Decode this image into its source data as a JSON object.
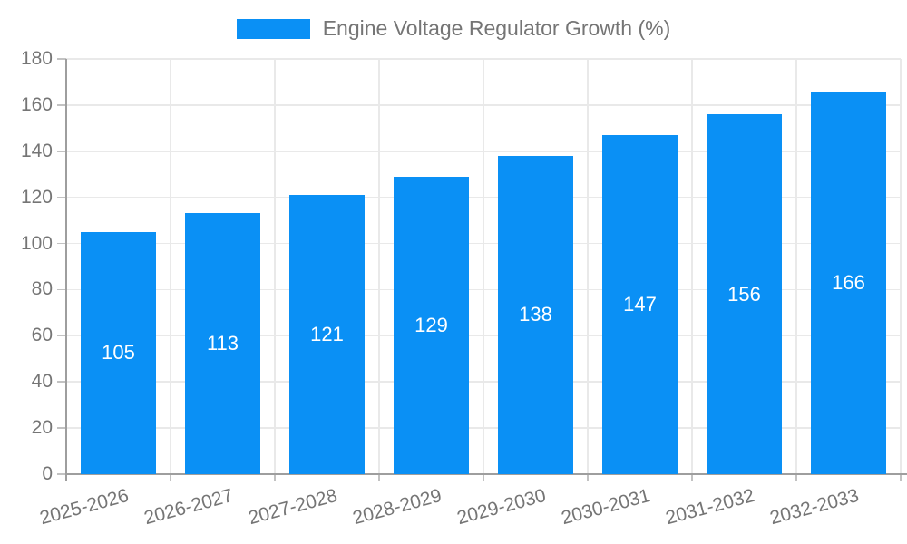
{
  "chart_data": {
    "type": "bar",
    "title": "Engine Voltage Regulator Growth (%)",
    "categories": [
      "2025-2026",
      "2026-2027",
      "2027-2028",
      "2028-2029",
      "2029-2030",
      "2030-2031",
      "2031-2032",
      "2032-2033"
    ],
    "values": [
      105,
      113,
      121,
      129,
      138,
      147,
      156,
      166
    ],
    "xlabel": "",
    "ylabel": "",
    "ylim": [
      0,
      180
    ],
    "yticks": [
      0,
      20,
      40,
      60,
      80,
      100,
      120,
      140,
      160,
      180
    ],
    "grid": true,
    "legend_position": "top-center",
    "x_label_rotation_deg": 15,
    "value_labels": "centered-in-bar",
    "colors": {
      "bar": "#0a90f5",
      "grid": "#e9e9e9",
      "axis": "#9e9e9e",
      "tick": "#c2c2c2",
      "text": "#757575",
      "value_label": "#ffffff",
      "background": "#ffffff"
    }
  }
}
